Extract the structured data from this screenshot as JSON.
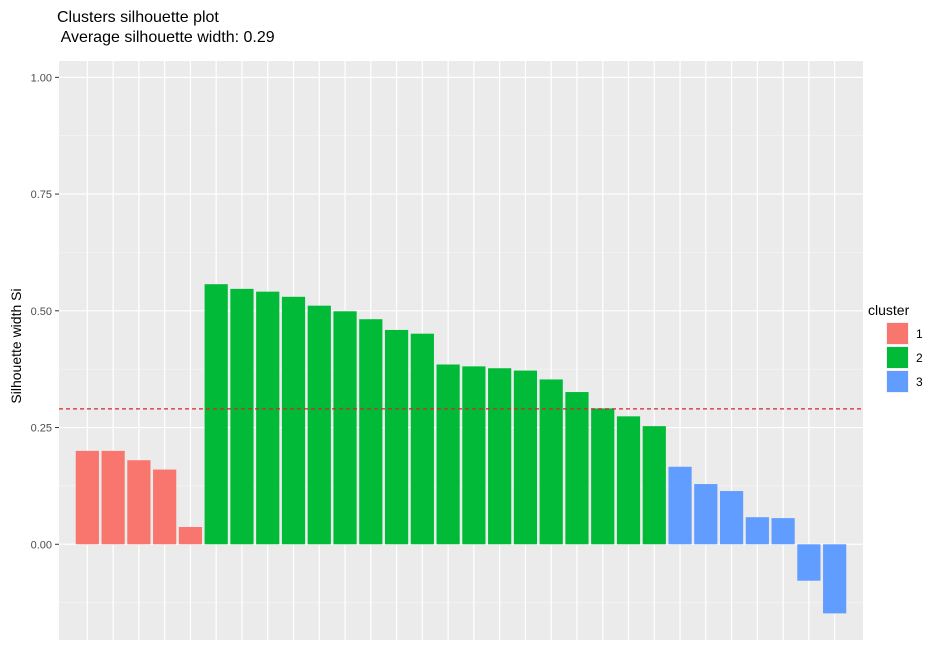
{
  "chart_data": {
    "type": "bar",
    "title": "Clusters silhouette plot",
    "subtitle": " Average silhouette width: 0.29",
    "xlabel": "",
    "ylabel": "Silhouette width Si",
    "ylim": [
      -0.205,
      1.035
    ],
    "yticks": [
      0.0,
      0.25,
      0.5,
      0.75,
      1.0
    ],
    "ytick_labels": [
      "0.00",
      "0.25",
      "0.50",
      "0.75",
      "1.00"
    ],
    "grid": true,
    "average_line": {
      "value": 0.29,
      "color": "#d62728",
      "style": "dashed"
    },
    "legend": {
      "title": "cluster",
      "position": "right",
      "entries": [
        {
          "label": "1",
          "color": "#F8766D"
        },
        {
          "label": "2",
          "color": "#00BA38"
        },
        {
          "label": "3",
          "color": "#619CFF"
        }
      ]
    },
    "values": [
      0.2,
      0.2,
      0.18,
      0.16,
      0.037,
      0.557,
      0.547,
      0.541,
      0.53,
      0.511,
      0.499,
      0.482,
      0.459,
      0.451,
      0.385,
      0.381,
      0.377,
      0.372,
      0.353,
      0.326,
      0.291,
      0.274,
      0.253,
      0.166,
      0.129,
      0.114,
      0.058,
      0.056,
      -0.078,
      -0.148
    ],
    "cluster": [
      "1",
      "1",
      "1",
      "1",
      "1",
      "2",
      "2",
      "2",
      "2",
      "2",
      "2",
      "2",
      "2",
      "2",
      "2",
      "2",
      "2",
      "2",
      "2",
      "2",
      "2",
      "2",
      "2",
      "3",
      "3",
      "3",
      "3",
      "3",
      "3",
      "3"
    ]
  }
}
